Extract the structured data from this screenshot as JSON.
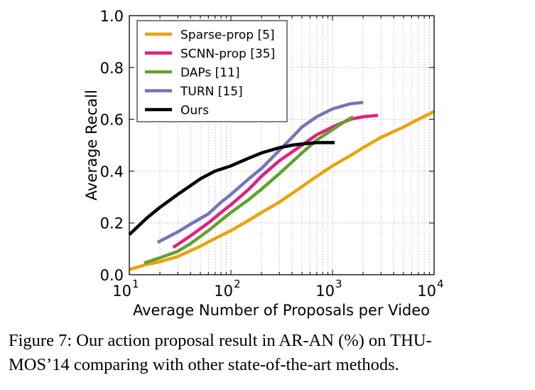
{
  "chart_data": {
    "type": "line",
    "xlabel": "Average Number of Proposals per Video",
    "ylabel": "Average Recall",
    "xscale": "log",
    "xlim": [
      10,
      10000
    ],
    "ylim": [
      0.0,
      1.0
    ],
    "x_tick_labels": [
      {
        "value": 10,
        "base": "10",
        "exp": "1"
      },
      {
        "value": 100,
        "base": "10",
        "exp": "2"
      },
      {
        "value": 1000,
        "base": "10",
        "exp": "3"
      },
      {
        "value": 10000,
        "base": "10",
        "exp": "4"
      }
    ],
    "y_tick_labels": [
      "0.0",
      "0.2",
      "0.4",
      "0.6",
      "0.8",
      "1.0"
    ],
    "y_tick_values": [
      0.0,
      0.2,
      0.4,
      0.6,
      0.8,
      1.0
    ],
    "grid": true,
    "legend_position": "top-left",
    "series": [
      {
        "name": "Sparse-prop [5]",
        "color": "#e8a30c",
        "x": [
          10,
          15,
          20,
          30,
          50,
          70,
          100,
          150,
          200,
          300,
          500,
          700,
          1000,
          1500,
          2000,
          3000,
          5000,
          7000,
          10000
        ],
        "y": [
          0.02,
          0.04,
          0.05,
          0.07,
          0.11,
          0.14,
          0.17,
          0.21,
          0.24,
          0.28,
          0.34,
          0.38,
          0.42,
          0.46,
          0.49,
          0.53,
          0.57,
          0.6,
          0.63
        ]
      },
      {
        "name": "SCNN-prop [35]",
        "color": "#e0207f",
        "x": [
          27,
          40,
          60,
          80,
          100,
          150,
          200,
          300,
          500,
          700,
          1000,
          1500,
          2000,
          2800
        ],
        "y": [
          0.105,
          0.15,
          0.2,
          0.24,
          0.27,
          0.33,
          0.38,
          0.44,
          0.5,
          0.54,
          0.57,
          0.6,
          0.61,
          0.615
        ]
      },
      {
        "name": "DAPs [11]",
        "color": "#62a22a",
        "x": [
          14,
          20,
          30,
          40,
          60,
          80,
          100,
          150,
          200,
          300,
          500,
          700,
          1000,
          1300,
          1600
        ],
        "y": [
          0.045,
          0.065,
          0.09,
          0.12,
          0.17,
          0.21,
          0.24,
          0.29,
          0.33,
          0.39,
          0.47,
          0.52,
          0.56,
          0.59,
          0.61
        ]
      },
      {
        "name": "TURN [15]",
        "color": "#7575b8",
        "x": [
          19,
          30,
          40,
          60,
          80,
          100,
          150,
          200,
          300,
          400,
          500,
          700,
          1000,
          1500,
          2000
        ],
        "y": [
          0.125,
          0.165,
          0.195,
          0.235,
          0.28,
          0.31,
          0.37,
          0.41,
          0.48,
          0.53,
          0.57,
          0.61,
          0.64,
          0.66,
          0.665
        ]
      },
      {
        "name": "Ours",
        "color": "#000000",
        "x": [
          10,
          15,
          20,
          30,
          50,
          70,
          100,
          150,
          200,
          300,
          400,
          500,
          700,
          1000,
          1050
        ],
        "y": [
          0.155,
          0.22,
          0.26,
          0.31,
          0.37,
          0.4,
          0.42,
          0.45,
          0.47,
          0.49,
          0.5,
          0.505,
          0.51,
          0.51,
          0.51
        ]
      }
    ]
  },
  "caption": {
    "line1": "Figure 7:  Our action proposal result in AR-AN (%) on THU-",
    "line2": "MOS’14 comparing with other state-of-the-art methods."
  }
}
